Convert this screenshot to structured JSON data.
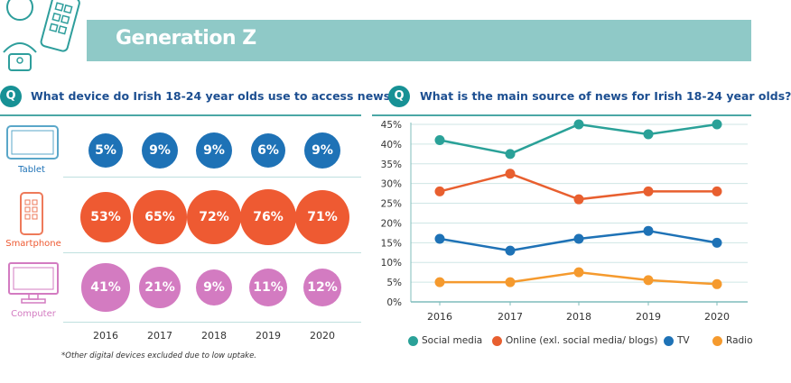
{
  "header": {
    "title": "Generation Z"
  },
  "left_panel": {
    "q_badge": "Q",
    "question": "What device do Irish 18-24 year olds use to access news?*",
    "footnote": "*Other digital devices excluded due to low uptake.",
    "devices": [
      {
        "label": "Tablet",
        "icon": "tablet-icon",
        "color": "#1e72b6"
      },
      {
        "label": "Smartphone",
        "icon": "smartphone-icon",
        "color": "#ee5a32"
      },
      {
        "label": "Computer",
        "icon": "computer-icon",
        "color": "#d37bc1"
      }
    ]
  },
  "right_panel": {
    "q_badge": "Q",
    "question": "What is the main source of news for Irish 18-24 year olds?"
  },
  "colors": {
    "teal": "#179195",
    "banner": "#8fc9c7",
    "tablet": "#1e72b6",
    "smartphone": "#ee5a32",
    "computer": "#d37bc1",
    "social": "#2aa198",
    "online": "#e85f2f",
    "tv": "#1e72b6",
    "radio": "#f59a2e"
  },
  "chart_data": [
    {
      "type": "table",
      "categories": [
        "2016",
        "2017",
        "2018",
        "2019",
        "2020"
      ],
      "series": [
        {
          "name": "Tablet",
          "values": [
            5,
            9,
            9,
            6,
            9
          ],
          "labels": [
            "5%",
            "9%",
            "9%",
            "6%",
            "9%"
          ]
        },
        {
          "name": "Smartphone",
          "values": [
            53,
            65,
            72,
            76,
            71
          ],
          "labels": [
            "53%",
            "65%",
            "72%",
            "76%",
            "71%"
          ]
        },
        {
          "name": "Computer",
          "values": [
            41,
            21,
            9,
            11,
            12
          ],
          "labels": [
            "41%",
            "21%",
            "9%",
            "11%",
            "12%"
          ]
        }
      ]
    },
    {
      "type": "line",
      "x": [
        "2016",
        "2017",
        "2018",
        "2019",
        "2020"
      ],
      "ylim": [
        0,
        45
      ],
      "yticks": [
        "0%",
        "5%",
        "10%",
        "15%",
        "20%",
        "25%",
        "30%",
        "35%",
        "40%",
        "45%"
      ],
      "legend_position": "bottom",
      "series": [
        {
          "name": "Social media",
          "color": "#2aa198",
          "values": [
            41,
            37.5,
            45,
            42.5,
            45
          ]
        },
        {
          "name": "Online (exl. social media/ blogs)",
          "color": "#e85f2f",
          "values": [
            28,
            32.5,
            26,
            28,
            28
          ]
        },
        {
          "name": "TV",
          "color": "#1e72b6",
          "values": [
            16,
            13,
            16,
            18,
            15
          ]
        },
        {
          "name": "Radio",
          "color": "#f59a2e",
          "values": [
            5,
            5,
            7.5,
            5.5,
            4.5
          ]
        }
      ]
    }
  ]
}
